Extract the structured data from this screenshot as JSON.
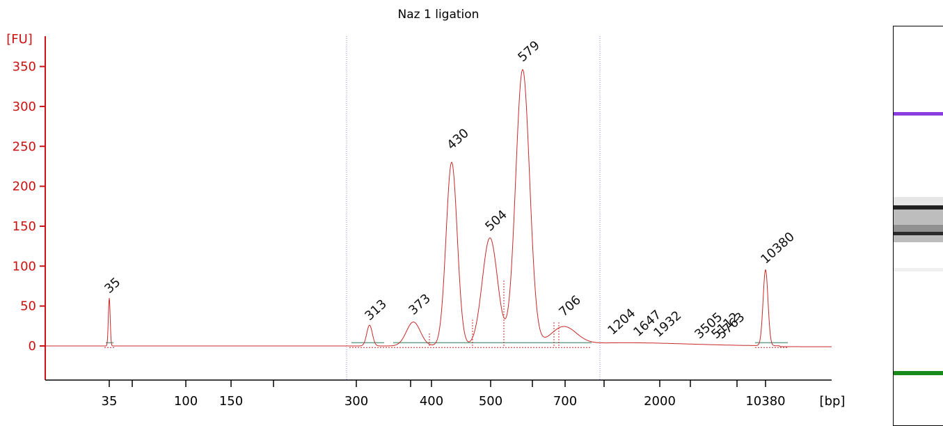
{
  "chart_data": {
    "type": "line",
    "title": "Naz 1 ligation",
    "ylabel": "[FU]",
    "xlabel": "[bp]",
    "ylim": [
      -40,
      380
    ],
    "yticks": [
      0,
      50,
      100,
      150,
      200,
      250,
      300,
      350
    ],
    "xtick_labels": [
      "35",
      "100",
      "150",
      "300",
      "400",
      "500",
      "700",
      "2000",
      "10380"
    ],
    "colors": {
      "trace": "#c82828",
      "axis": "#cc1111",
      "lower_marker": "#1a8a1a",
      "upper_marker": "#8a3ee0",
      "baseline": "#6aa08a",
      "region_line": "#8a8ad8"
    },
    "peaks": [
      {
        "label": "35",
        "x": 35,
        "y": 60,
        "color": "#1a8a1a"
      },
      {
        "label": "313",
        "x": 313,
        "y": 26
      },
      {
        "label": "373",
        "x": 373,
        "y": 33
      },
      {
        "label": "430",
        "x": 430,
        "y": 240
      },
      {
        "label": "504",
        "x": 504,
        "y": 138
      },
      {
        "label": "579",
        "x": 579,
        "y": 350
      },
      {
        "label": "706",
        "x": 706,
        "y": 31
      },
      {
        "label": "1204",
        "x": 1204,
        "y": 8
      },
      {
        "label": "1647",
        "x": 1647,
        "y": 6
      },
      {
        "label": "1932",
        "x": 1932,
        "y": 5
      },
      {
        "label": "3505",
        "x": 3505,
        "y": 3
      },
      {
        "label": "5112",
        "x": 5112,
        "y": 3
      },
      {
        "label": "5763",
        "x": 5763,
        "y": 3
      },
      {
        "label": "10380",
        "x": 10380,
        "y": 97,
        "color": "#8a3ee0"
      }
    ],
    "region_bounds_bp": [
      280,
      870
    ],
    "gel": {
      "upper_marker": "10380",
      "lower_marker": "35"
    }
  }
}
